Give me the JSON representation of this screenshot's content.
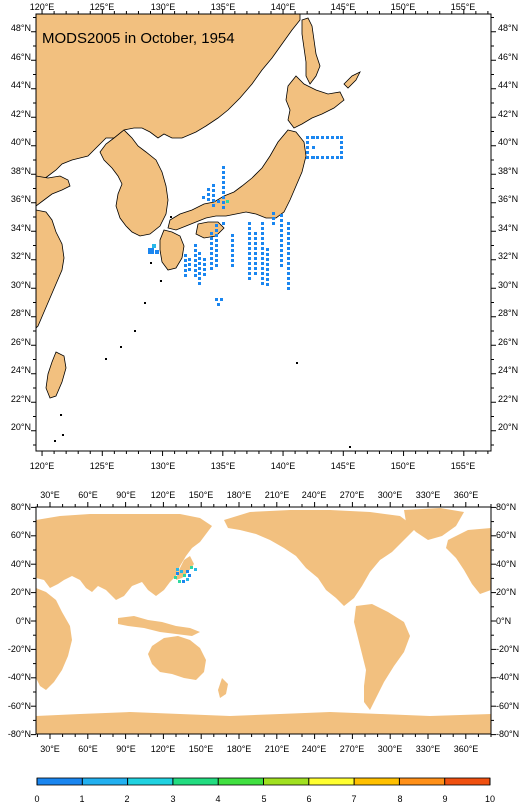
{
  "title": "MODS2005 in October, 1954",
  "colors": {
    "land": "#f2c07f",
    "ocean": "#ffffff",
    "obs_main": "#1a86f0",
    "obs_secondary": "#28b7e8",
    "obs_high": "#2fd9a0"
  },
  "regional_map": {
    "x_ticks": [
      "120°E",
      "125°E",
      "130°E",
      "135°E",
      "140°E",
      "145°E",
      "150°E",
      "155°E"
    ],
    "y_ticks": [
      "48°N",
      "46°N",
      "44°N",
      "42°N",
      "40°N",
      "38°N",
      "36°N",
      "34°N",
      "32°N",
      "30°N",
      "28°N",
      "26°N",
      "24°N",
      "22°N",
      "20°N"
    ]
  },
  "global_map": {
    "x_ticks": [
      "30°E",
      "60°E",
      "90°E",
      "120°E",
      "150°E",
      "180°E",
      "210°E",
      "240°E",
      "270°E",
      "300°E",
      "330°E",
      "360°E"
    ],
    "y_ticks": [
      "80°N",
      "60°N",
      "40°N",
      "20°N",
      "0°N",
      "-20°N",
      "-40°N",
      "-60°N",
      "-80°N"
    ]
  },
  "colorbar": {
    "labels": [
      "0",
      "1",
      "2",
      "3",
      "4",
      "5",
      "6",
      "7",
      "8",
      "9",
      "10"
    ],
    "colors": [
      "#1a5fe0",
      "#1a86f0",
      "#22b0f0",
      "#20d2e0",
      "#22dc80",
      "#40e040",
      "#a0e020",
      "#ffff30",
      "#ffc000",
      "#ff9018",
      "#f05010"
    ]
  }
}
